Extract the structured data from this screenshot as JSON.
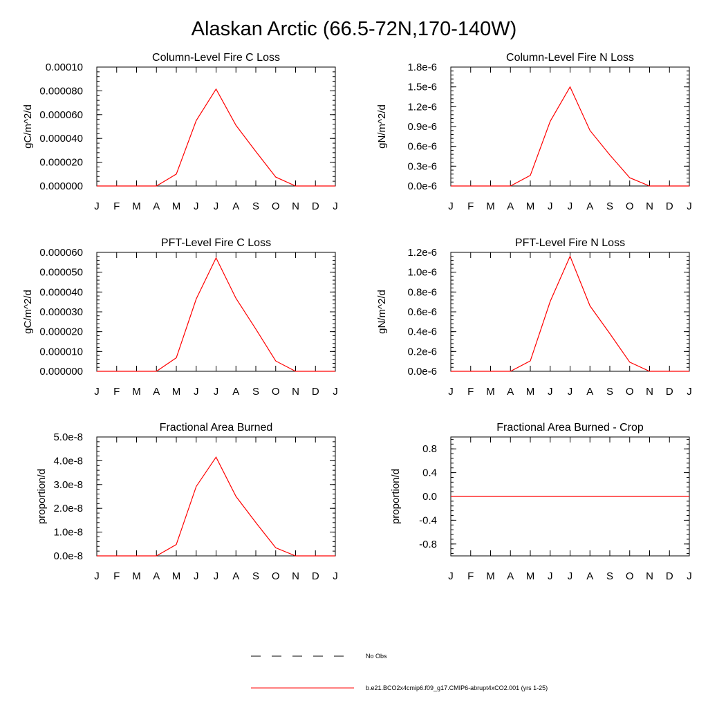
{
  "figure_title": "Alaskan Arctic (66.5-72N,170-140W)",
  "colors": {
    "model_line": "#ff0000",
    "axes": "#000000",
    "obs_line": "#000000"
  },
  "chart_data": [
    {
      "type": "line",
      "title": "Column-Level Fire C Loss",
      "ylabel": "gC/m^2/d",
      "xlabel": "",
      "categories": [
        "J",
        "F",
        "M",
        "A",
        "M",
        "J",
        "J",
        "A",
        "S",
        "O",
        "N",
        "D",
        "J"
      ],
      "ylim": [
        0,
        0.0001
      ],
      "yticks": [
        0,
        2e-05,
        4e-05,
        6e-05,
        8e-05,
        0.0001
      ],
      "ytick_labels": [
        "0.000000",
        "0.000020",
        "0.000040",
        "0.000060",
        "0.000080",
        "0.00010"
      ],
      "series": [
        {
          "name": "b.e21.BCO2x4cmip6.f09_g17.CMIP6-abrupt4xCO2.001 (yrs 1-25)",
          "values": [
            0,
            0,
            0,
            0,
            1e-05,
            5.5e-05,
            8.15e-05,
            5.1e-05,
            2.9e-05,
            7.5e-06,
            0,
            0,
            0
          ]
        }
      ]
    },
    {
      "type": "line",
      "title": "Column-Level Fire N Loss",
      "ylabel": "gN/m^2/d",
      "xlabel": "",
      "categories": [
        "J",
        "F",
        "M",
        "A",
        "M",
        "J",
        "J",
        "A",
        "S",
        "O",
        "N",
        "D",
        "J"
      ],
      "ylim": [
        0,
        1.8e-06
      ],
      "yticks": [
        0,
        3e-07,
        6e-07,
        9e-07,
        1.2e-06,
        1.5e-06,
        1.8e-06
      ],
      "ytick_labels": [
        "0.0e-6",
        "0.3e-6",
        "0.6e-6",
        "0.9e-6",
        "1.2e-6",
        "1.5e-6",
        "1.8e-6"
      ],
      "series": [
        {
          "name": "b.e21.BCO2x4cmip6.f09_g17.CMIP6-abrupt4xCO2.001 (yrs 1-25)",
          "values": [
            0,
            0,
            0,
            0,
            1.6e-07,
            9.8e-07,
            1.5e-06,
            8.4e-07,
            4.7e-07,
            1.25e-07,
            0,
            0,
            0
          ]
        }
      ]
    },
    {
      "type": "line",
      "title": "PFT-Level Fire C Loss",
      "ylabel": "gC/m^2/d",
      "xlabel": "",
      "categories": [
        "J",
        "F",
        "M",
        "A",
        "M",
        "J",
        "J",
        "A",
        "S",
        "O",
        "N",
        "D",
        "J"
      ],
      "ylim": [
        0,
        6e-05
      ],
      "yticks": [
        0,
        1e-05,
        2e-05,
        3e-05,
        4e-05,
        5e-05,
        6e-05
      ],
      "ytick_labels": [
        "0.000000",
        "0.000010",
        "0.000020",
        "0.000030",
        "0.000040",
        "0.000050",
        "0.000060"
      ],
      "series": [
        {
          "name": "b.e21.BCO2x4cmip6.f09_g17.CMIP6-abrupt4xCO2.001 (yrs 1-25)",
          "values": [
            0,
            0,
            0,
            0,
            6.8e-06,
            3.65e-05,
            5.72e-05,
            3.68e-05,
            2.13e-05,
            5.2e-06,
            0,
            0,
            0
          ]
        }
      ]
    },
    {
      "type": "line",
      "title": "PFT-Level Fire N Loss",
      "ylabel": "gN/m^2/d",
      "xlabel": "",
      "categories": [
        "J",
        "F",
        "M",
        "A",
        "M",
        "J",
        "J",
        "A",
        "S",
        "O",
        "N",
        "D",
        "J"
      ],
      "ylim": [
        0,
        1.2e-06
      ],
      "yticks": [
        0,
        2e-07,
        4e-07,
        6e-07,
        8e-07,
        1e-06,
        1.2e-06
      ],
      "ytick_labels": [
        "0.0e-6",
        "0.2e-6",
        "0.4e-6",
        "0.6e-6",
        "0.8e-6",
        "1.0e-6",
        "1.2e-6"
      ],
      "series": [
        {
          "name": "b.e21.BCO2x4cmip6.f09_g17.CMIP6-abrupt4xCO2.001 (yrs 1-25)",
          "values": [
            0,
            0,
            0,
            0,
            1.05e-07,
            7.05e-07,
            1.16e-06,
            6.6e-07,
            3.8e-07,
            9.2e-08,
            0,
            0,
            0
          ]
        }
      ]
    },
    {
      "type": "line",
      "title": "Fractional Area Burned",
      "ylabel": "proportion/d",
      "xlabel": "",
      "categories": [
        "J",
        "F",
        "M",
        "A",
        "M",
        "J",
        "J",
        "A",
        "S",
        "O",
        "N",
        "D",
        "J"
      ],
      "ylim": [
        0,
        5e-08
      ],
      "yticks": [
        0,
        1e-08,
        2e-08,
        3e-08,
        4e-08,
        5e-08
      ],
      "ytick_labels": [
        "0.0e-8",
        "1.0e-8",
        "2.0e-8",
        "3.0e-8",
        "4.0e-8",
        "5.0e-8"
      ],
      "series": [
        {
          "name": "b.e21.BCO2x4cmip6.f09_g17.CMIP6-abrupt4xCO2.001 (yrs 1-25)",
          "values": [
            0,
            0,
            0,
            0,
            4.8e-09,
            2.92e-08,
            4.15e-08,
            2.5e-08,
            1.4e-08,
            3.4e-09,
            0,
            0,
            0
          ]
        }
      ]
    },
    {
      "type": "line",
      "title": "Fractional Area Burned - Crop",
      "ylabel": "proportion/d",
      "xlabel": "",
      "categories": [
        "J",
        "F",
        "M",
        "A",
        "M",
        "J",
        "J",
        "A",
        "S",
        "O",
        "N",
        "D",
        "J"
      ],
      "ylim": [
        -1,
        1
      ],
      "yticks": [
        -0.8,
        -0.4,
        0,
        0.4,
        0.8
      ],
      "ytick_labels": [
        "-0.8",
        "-0.4",
        "0.0",
        "0.4",
        "0.8"
      ],
      "series": [
        {
          "name": "b.e21.BCO2x4cmip6.f09_g17.CMIP6-abrupt4xCO2.001 (yrs 1-25)",
          "values": [
            0,
            0,
            0,
            0,
            0,
            0,
            0,
            0,
            0,
            0,
            0,
            0,
            0
          ]
        }
      ]
    }
  ],
  "legend": {
    "entries": [
      {
        "label": "No Obs",
        "style": "dashed"
      },
      {
        "label": "b.e21.BCO2x4cmip6.f09_g17.CMIP6-abrupt4xCO2.001 (yrs 1-25)",
        "style": "solid"
      }
    ]
  }
}
